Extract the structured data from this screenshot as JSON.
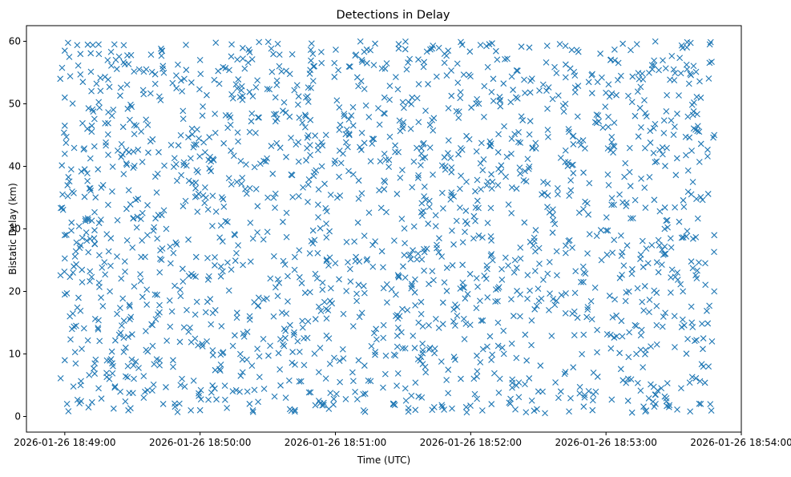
{
  "chart_data": {
    "type": "scatter",
    "title": "Detections in Delay",
    "xlabel": "Time (UTC)",
    "ylabel": "Bistatic Delay (km)",
    "marker": "x",
    "color": "#1f77b4",
    "grid": false,
    "legend": "none",
    "xlim": [
      "2026-01-26 18:48:43",
      "2026-01-26 18:54:00"
    ],
    "ylim": [
      -2.5,
      62.5
    ],
    "xticks": [
      "2026-01-26 18:49:00",
      "2026-01-26 18:50:00",
      "2026-01-26 18:51:00",
      "2026-01-26 18:52:00",
      "2026-01-26 18:53:00",
      "2026-01-26 18:54:00"
    ],
    "yticks": [
      0,
      10,
      20,
      30,
      40,
      50,
      60
    ],
    "x_range": [
      "2026-01-26 18:48:58",
      "2026-01-26 18:53:48"
    ],
    "y_range": [
      0.5,
      60
    ],
    "approx_point_count": 1900,
    "points": [
      [
        "2026-01-26 18:48:58",
        54.0
      ],
      [
        "2026-01-26 18:48:59",
        35.5
      ],
      [
        "2026-01-26 18:49:00",
        58.5
      ],
      [
        "2026-01-26 18:49:00",
        51.0
      ],
      [
        "2026-01-26 18:49:00",
        46.5
      ],
      [
        "2026-01-26 18:49:00",
        42.0
      ],
      [
        "2026-01-26 18:49:00",
        29.0
      ],
      [
        "2026-01-26 18:49:00",
        19.5
      ],
      [
        "2026-01-26 18:49:00",
        9.0
      ],
      [
        "2026-01-26 18:49:01",
        2.0
      ],
      [
        "2026-01-26 18:49:02",
        57.5
      ],
      [
        "2026-01-26 18:49:03",
        31.0
      ],
      [
        "2026-01-26 18:49:04",
        24.0
      ],
      [
        "2026-01-26 18:49:05",
        14.5
      ],
      [
        "2026-01-26 18:49:07",
        5.0
      ],
      [
        "2026-01-26 18:49:08",
        53.5
      ],
      [
        "2026-01-26 18:49:10",
        46.0
      ],
      [
        "2026-01-26 18:49:12",
        46.5
      ],
      [
        "2026-01-26 18:49:13",
        28.5
      ],
      [
        "2026-01-26 18:49:15",
        59.5
      ],
      [
        "2026-01-26 18:49:15",
        4.5
      ],
      [
        "2026-01-26 18:49:17",
        37.0
      ],
      [
        "2026-01-26 18:49:20",
        20.0
      ],
      [
        "2026-01-26 18:49:22",
        59.5
      ],
      [
        "2026-01-26 18:49:25",
        41.5
      ],
      [
        "2026-01-26 18:49:27",
        11.0
      ],
      [
        "2026-01-26 18:49:30",
        27.0
      ],
      [
        "2026-01-26 18:49:33",
        55.5
      ],
      [
        "2026-01-26 18:49:35",
        3.0
      ],
      [
        "2026-01-26 18:49:38",
        44.0
      ],
      [
        "2026-01-26 18:49:40",
        19.5
      ],
      [
        "2026-01-26 18:49:43",
        58.5
      ],
      [
        "2026-01-26 18:49:45",
        30.0
      ],
      [
        "2026-01-26 18:49:48",
        9.0
      ],
      [
        "2026-01-26 18:49:50",
        0.7
      ],
      [
        "2026-01-26 18:49:52",
        52.0
      ],
      [
        "2026-01-26 18:49:55",
        22.5
      ],
      [
        "2026-01-26 18:49:58",
        36.5
      ],
      [
        "2026-01-26 18:50:00",
        57.0
      ],
      [
        "2026-01-26 18:50:00",
        1.0
      ],
      [
        "2026-01-26 18:50:03",
        12.0
      ],
      [
        "2026-01-26 18:50:06",
        41.0
      ],
      [
        "2026-01-26 18:50:10",
        28.0
      ],
      [
        "2026-01-26 18:50:14",
        59.5
      ],
      [
        "2026-01-26 18:50:18",
        6.5
      ],
      [
        "2026-01-26 18:50:22",
        45.5
      ],
      [
        "2026-01-26 18:50:26",
        19.0
      ],
      [
        "2026-01-26 18:50:30",
        35.0
      ],
      [
        "2026-01-26 18:50:34",
        53.0
      ],
      [
        "2026-01-26 18:50:38",
        3.0
      ],
      [
        "2026-01-26 18:50:42",
        25.5
      ],
      [
        "2026-01-26 18:50:46",
        12.5
      ],
      [
        "2026-01-26 18:50:50",
        58.0
      ],
      [
        "2026-01-26 18:50:54",
        40.0
      ],
      [
        "2026-01-26 18:50:58",
        20.5
      ],
      [
        "2026-01-26 18:51:02",
        5.5
      ],
      [
        "2026-01-26 18:51:06",
        47.5
      ],
      [
        "2026-01-26 18:51:10",
        31.0
      ],
      [
        "2026-01-26 18:51:14",
        56.5
      ],
      [
        "2026-01-26 18:51:18",
        14.0
      ],
      [
        "2026-01-26 18:51:22",
        37.5
      ],
      [
        "2026-01-26 18:51:26",
        2.0
      ],
      [
        "2026-01-26 18:51:30",
        24.0
      ],
      [
        "2026-01-26 18:51:34",
        51.0
      ],
      [
        "2026-01-26 18:51:38",
        9.5
      ],
      [
        "2026-01-26 18:51:42",
        43.0
      ],
      [
        "2026-01-26 18:51:46",
        28.5
      ],
      [
        "2026-01-26 18:51:50",
        58.5
      ],
      [
        "2026-01-26 18:51:54",
        17.5
      ],
      [
        "2026-01-26 18:51:58",
        1.5
      ],
      [
        "2026-01-26 18:52:02",
        36.0
      ],
      [
        "2026-01-26 18:52:06",
        22.5
      ],
      [
        "2026-01-26 18:52:10",
        54.0
      ],
      [
        "2026-01-26 18:52:14",
        11.0
      ],
      [
        "2026-01-26 18:52:18",
        42.0
      ],
      [
        "2026-01-26 18:52:22",
        27.0
      ],
      [
        "2026-01-26 18:52:26",
        59.0
      ],
      [
        "2026-01-26 18:52:30",
        4.0
      ],
      [
        "2026-01-26 18:52:34",
        33.5
      ],
      [
        "2026-01-26 18:52:38",
        18.5
      ],
      [
        "2026-01-26 18:52:42",
        50.0
      ],
      [
        "2026-01-26 18:52:46",
        13.0
      ],
      [
        "2026-01-26 18:52:50",
        39.0
      ],
      [
        "2026-01-26 18:52:54",
        1.0
      ],
      [
        "2026-01-26 18:52:58",
        25.0
      ],
      [
        "2026-01-26 18:53:02",
        57.0
      ],
      [
        "2026-01-26 18:53:06",
        35.5
      ],
      [
        "2026-01-26 18:53:10",
        9.5
      ],
      [
        "2026-01-26 18:53:14",
        20.5
      ],
      [
        "2026-01-26 18:53:18",
        48.0
      ],
      [
        "2026-01-26 18:53:22",
        3.5
      ],
      [
        "2026-01-26 18:53:26",
        30.0
      ],
      [
        "2026-01-26 18:53:30",
        55.5
      ],
      [
        "2026-01-26 18:53:34",
        15.5
      ],
      [
        "2026-01-26 18:53:38",
        42.5
      ],
      [
        "2026-01-26 18:53:42",
        2.0
      ],
      [
        "2026-01-26 18:53:44",
        24.5
      ],
      [
        "2026-01-26 18:53:46",
        59.5
      ],
      [
        "2026-01-26 18:53:47",
        12.0
      ],
      [
        "2026-01-26 18:53:48",
        29.0
      ],
      [
        "2026-01-26 18:53:48",
        45.0
      ],
      [
        "2026-01-26 18:53:48",
        20.0
      ]
    ]
  }
}
